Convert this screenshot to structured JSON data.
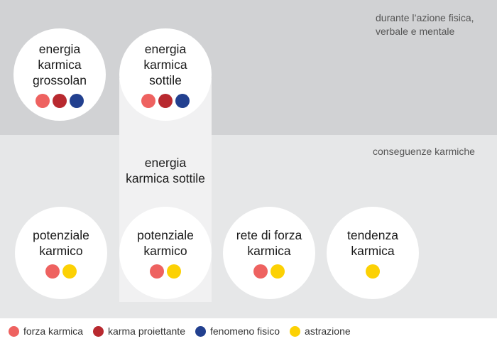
{
  "colors": {
    "forza": "#ee6260",
    "karma": "#b8292f",
    "fenomeno": "#22408f",
    "astrazione": "#fcd104"
  },
  "notes": {
    "top": "durante l’azione fisica,\nverbale e mentale",
    "mid": "conseguenze karmiche"
  },
  "column_label": "energia\nkarmica sottile",
  "top_circles": [
    {
      "label": "energia\nkarmica\ngrossolan",
      "dots": [
        "forza",
        "karma",
        "fenomeno"
      ]
    },
    {
      "label": "energia\nkarmica\nsottile",
      "dots": [
        "forza",
        "karma",
        "fenomeno"
      ]
    }
  ],
  "bottom_circles": [
    {
      "label": "potenziale\nkarmico",
      "dots": [
        "forza",
        "astrazione"
      ]
    },
    {
      "label": "potenziale\nkarmico",
      "dots": [
        "forza",
        "astrazione"
      ]
    },
    {
      "label": "rete di forza\nkarmica",
      "dots": [
        "forza",
        "astrazione"
      ]
    },
    {
      "label": "tendenza\nkarmica",
      "dots": [
        "astrazione"
      ]
    }
  ],
  "legend": [
    {
      "key": "forza",
      "label": "forza karmica"
    },
    {
      "key": "karma",
      "label": "karma proiettante"
    },
    {
      "key": "fenomeno",
      "label": "fenomeno fisico"
    },
    {
      "key": "astrazione",
      "label": "astrazione"
    }
  ]
}
